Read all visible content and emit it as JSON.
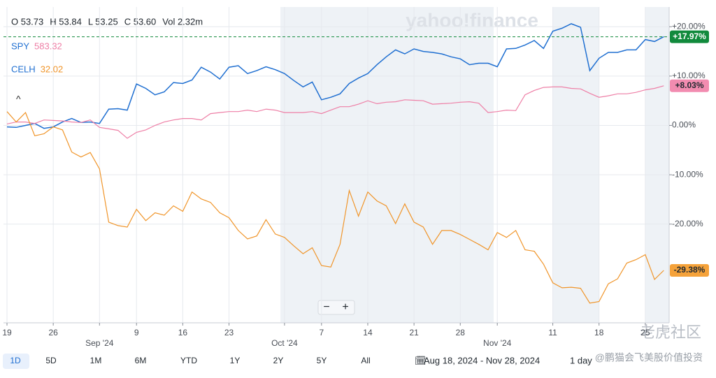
{
  "chart_data": {
    "type": "line",
    "ohlc": [
      "O 53.73",
      "H 53.84",
      "L 53.25",
      "C 53.60",
      "Vol 2.32m"
    ],
    "watermark": "yahoo!finance",
    "categories": [
      "19",
      null,
      null,
      null,
      null,
      "26",
      null,
      null,
      null,
      null,
      null,
      null,
      null,
      null,
      "9",
      null,
      null,
      null,
      null,
      "16",
      null,
      null,
      null,
      null,
      "23",
      null,
      null,
      null,
      null,
      null,
      null,
      null,
      null,
      null,
      "7",
      null,
      null,
      null,
      null,
      "14",
      null,
      null,
      null,
      null,
      "21",
      null,
      null,
      null,
      null,
      "28",
      null,
      null,
      null,
      null,
      null,
      null,
      null,
      null,
      null,
      "11",
      null,
      null,
      null,
      null,
      "18",
      null,
      null,
      null,
      null,
      "25",
      null,
      null
    ],
    "month_labels": [
      null,
      null,
      null,
      null,
      null,
      null,
      null,
      null,
      null,
      null,
      "Sep '24",
      null,
      null,
      null,
      null,
      null,
      null,
      null,
      null,
      null,
      null,
      null,
      null,
      null,
      null,
      null,
      null,
      null,
      null,
      null,
      "Oct '24",
      null,
      null,
      null,
      null,
      null,
      null,
      null,
      null,
      null,
      null,
      null,
      null,
      null,
      null,
      null,
      null,
      null,
      null,
      null,
      null,
      null,
      null,
      "Nov '24",
      null,
      null,
      null,
      null,
      null,
      null,
      null,
      null,
      null,
      null,
      null,
      null,
      null,
      null,
      null,
      null,
      null,
      null
    ],
    "series": [
      {
        "color": "#1f6fd1",
        "end_label": "+17.97%",
        "end_label_color": "#118a3c",
        "values": [
          -0.3,
          -0.4,
          0,
          0.4,
          -0.6,
          -0.3,
          0.7,
          1.4,
          0.6,
          0.7,
          0.4,
          3.3,
          3.4,
          3.1,
          8.4,
          7.5,
          6.2,
          6.8,
          8.7,
          8.5,
          9.2,
          11.8,
          10.8,
          9.4,
          11.8,
          12.1,
          10.5,
          11.1,
          11.9,
          11.3,
          10.5,
          9.1,
          7.8,
          8.8,
          5.2,
          5.7,
          6.4,
          8.5,
          9.6,
          10.5,
          12.3,
          13.9,
          15.3,
          14.5,
          15.5,
          15.0,
          14.8,
          14.5,
          13.9,
          13.5,
          12.3,
          12.6,
          12.6,
          11.9,
          15.5,
          15.6,
          16.3,
          17.2,
          15.6,
          19.1,
          19.7,
          20.6,
          19.9,
          11.1,
          13.6,
          14.8,
          14.8,
          15.3,
          15.3,
          17.4,
          17.0,
          17.97
        ]
      },
      {
        "name": "SPY",
        "price": "583.32",
        "color": "#ee7fa6",
        "end_label": "+8.03%",
        "end_label_color": "#f28cb0",
        "values": [
          0.3,
          0.7,
          0.7,
          0.4,
          1.1,
          1.0,
          0.9,
          0.7,
          0.6,
          1.1,
          -0.4,
          -0.7,
          -1.0,
          -2.6,
          -1.4,
          -0.9,
          0,
          0.7,
          1.1,
          1.4,
          1.4,
          1.1,
          2.4,
          2.6,
          2.8,
          2.8,
          3.1,
          2.8,
          3.3,
          3.1,
          2.6,
          2.6,
          2.6,
          2.8,
          2.4,
          3.1,
          3.8,
          3.8,
          4.3,
          5.0,
          4.4,
          4.7,
          4.8,
          5.2,
          5.1,
          5.0,
          4.3,
          4.4,
          4.5,
          4.7,
          4.8,
          4.5,
          2.6,
          2.8,
          3.1,
          3.0,
          6.2,
          7.1,
          7.7,
          7.8,
          7.8,
          7.5,
          7.4,
          6.5,
          5.7,
          6.0,
          6.4,
          6.4,
          6.7,
          7.2,
          7.5,
          8.03
        ]
      },
      {
        "name": "CELH",
        "price": "32.02",
        "color": "#f0952a",
        "end_label": "-29.38%",
        "end_label_color": "#f5a23a",
        "values": [
          2.8,
          0.7,
          2.6,
          -2.1,
          -1.7,
          -0.3,
          -0.9,
          -5.4,
          -6.4,
          -5.5,
          -8.8,
          -19.6,
          -20.3,
          -20.6,
          -17.0,
          -19.3,
          -17.7,
          -18.2,
          -16.3,
          -17.4,
          -13.5,
          -14.9,
          -15.6,
          -17.7,
          -18.7,
          -21.3,
          -23.0,
          -22.4,
          -19.1,
          -22.0,
          -22.7,
          -24.4,
          -26.0,
          -24.8,
          -28.4,
          -28.7,
          -24.1,
          -13.2,
          -18.4,
          -13.5,
          -15.3,
          -16.3,
          -19.9,
          -15.9,
          -19.6,
          -20.6,
          -24.1,
          -21.3,
          -21.3,
          -22.1,
          -23.1,
          -24.1,
          -25.2,
          -21.7,
          -22.7,
          -21.3,
          -25.2,
          -25.5,
          -28.1,
          -31.9,
          -32.9,
          -32.8,
          -33.0,
          -36.0,
          -35.7,
          -32.1,
          -31.1,
          -27.9,
          -27.2,
          -26.2,
          -31.2,
          -29.38
        ]
      }
    ],
    "ylim": [
      -40,
      24
    ],
    "yticks": [
      {
        "value": 20,
        "label": "+20.00%"
      },
      {
        "value": 10,
        "label": "+10.00%"
      },
      {
        "value": 0,
        "label": "0.00%"
      },
      {
        "value": -10,
        "label": "-10.00%"
      },
      {
        "value": -20,
        "label": "-20.00%"
      }
    ],
    "grid": true,
    "ranges": [
      "1D",
      "5D",
      "1M",
      "6M",
      "YTD",
      "1Y",
      "2Y",
      "5Y",
      "All"
    ],
    "date_range": "Aug 18, 2024 - Nov 28, 2024",
    "interval": "1 day"
  },
  "overlay": {
    "brand": "老虎社区",
    "author": "@鹏猫会飞美股价值投资"
  }
}
